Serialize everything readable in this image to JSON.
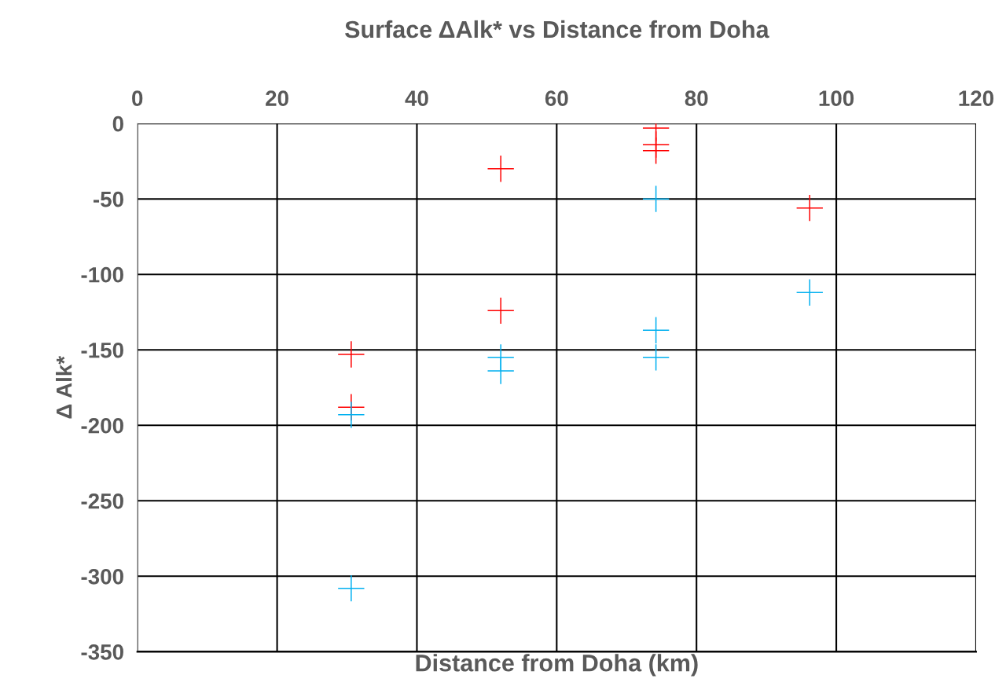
{
  "chart_data": {
    "type": "scatter",
    "title": "Surface ΔAlk* vs Distance from Doha",
    "xlabel": "Distance from Doha (km)",
    "ylabel": "Δ Alk*",
    "series": [
      {
        "color": "#ff0000",
        "x": [
          30.6,
          30.6,
          52,
          52,
          74.2,
          74.2,
          74.2,
          96.2
        ],
        "values": [
          -153,
          -188,
          -30,
          -124,
          -3,
          -14,
          -18,
          -56
        ]
      },
      {
        "color": "#00b0f0",
        "x": [
          30.6,
          30.6,
          52,
          52,
          74.2,
          74.2,
          74.2,
          96.2
        ],
        "values": [
          -193,
          -308,
          -155,
          -164,
          -50,
          -137,
          -155,
          -112
        ]
      }
    ],
    "xlim": [
      0,
      120
    ],
    "xticks": [
      0,
      20,
      40,
      60,
      80,
      100,
      120
    ],
    "ylim": [
      -350,
      0
    ],
    "yticks": [
      -350,
      -300,
      -250,
      -200,
      -150,
      -100,
      -50,
      0
    ],
    "grid": true,
    "marker": "cross"
  }
}
